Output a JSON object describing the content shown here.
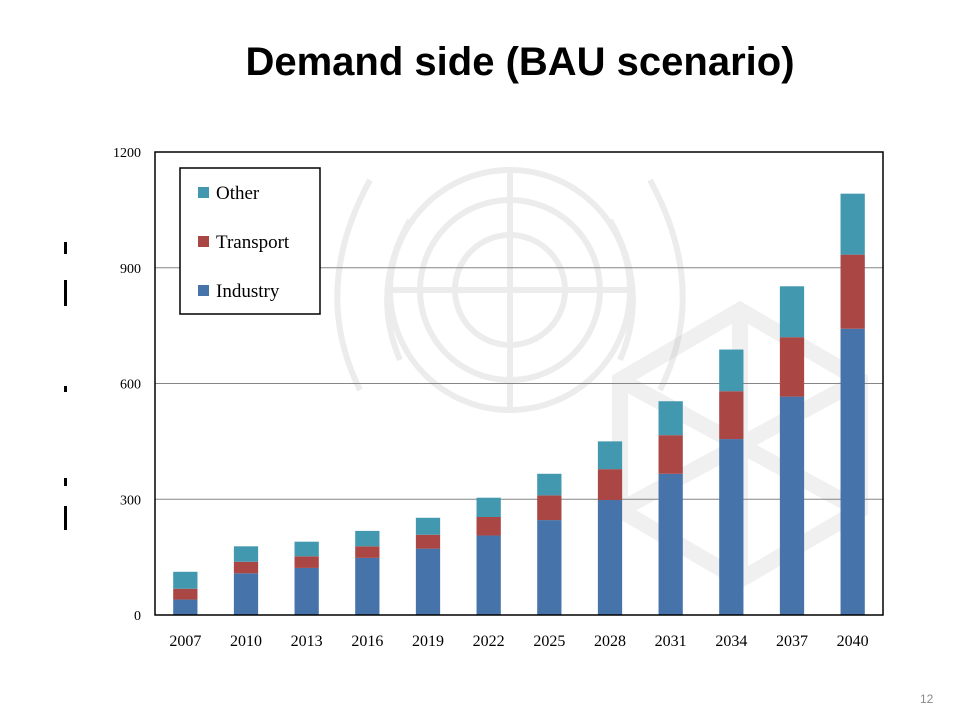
{
  "slide": {
    "title": "Demand side (BAU scenario)",
    "page_number": "12"
  },
  "colors": {
    "industry": "#4674AA",
    "transport": "#AA4643",
    "other": "#4198AF",
    "grid": "#868686",
    "frame": "#000000"
  },
  "chart_data": {
    "type": "bar",
    "stacked": true,
    "categories": [
      "2007",
      "2010",
      "2013",
      "2016",
      "2019",
      "2022",
      "2025",
      "2028",
      "2031",
      "2034",
      "2037",
      "2040"
    ],
    "series": [
      {
        "name": "Industry",
        "color": "#4674AA",
        "values": [
          40,
          108,
          122,
          148,
          172,
          206,
          246,
          298,
          366,
          456,
          566,
          742
        ]
      },
      {
        "name": "Transport",
        "color": "#AA4643",
        "values": [
          28,
          30,
          30,
          30,
          36,
          48,
          64,
          80,
          100,
          124,
          154,
          192
        ]
      },
      {
        "name": "Other",
        "color": "#4198AF",
        "values": [
          44,
          40,
          38,
          40,
          44,
          50,
          56,
          72,
          88,
          108,
          132,
          158
        ]
      }
    ],
    "yticks": [
      "0",
      "300",
      "600",
      "900",
      "1200"
    ],
    "ylim": [
      0,
      1200
    ],
    "grid": true,
    "legend_position": "top-left",
    "legend_order": [
      "Other",
      "Transport",
      "Industry"
    ]
  }
}
